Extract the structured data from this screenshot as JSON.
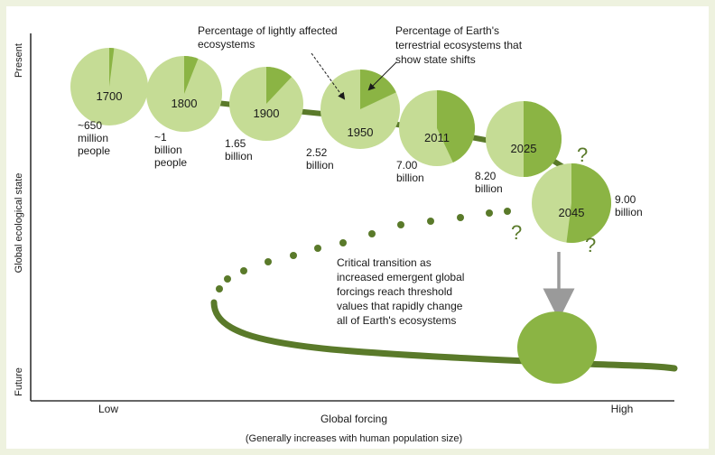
{
  "axes": {
    "y_label": "Global ecological state",
    "y_top": "Present",
    "y_bottom": "Future",
    "x_label": "Global forcing",
    "x_left": "Low",
    "x_right": "High",
    "x_note": "(Generally increases with human population size)"
  },
  "callouts": {
    "lightly_affected": [
      "Percentage of lightly affected",
      "ecosystems"
    ],
    "state_shifts": [
      "Percentage of Earth's",
      "terrestrial ecosystems that",
      "show state shifts"
    ],
    "critical_transition": [
      "Critical transition as",
      "increased emergent global",
      "forcings reach threshold",
      "values that rapidly change",
      "all of Earth's ecosystems"
    ]
  },
  "question_marks": [
    "?",
    "?",
    "?"
  ],
  "colors": {
    "light_green": "#c5dc95",
    "dark_green": "#8bb444",
    "trajectory": "#5a7a2a",
    "arrow_gray": "#9a9a9a"
  },
  "chart_data": {
    "type": "pie",
    "pies": [
      {
        "year": "1700",
        "population_lines": [
          "~650",
          "million",
          "people"
        ],
        "state_shift_fraction": 0.02
      },
      {
        "year": "1800",
        "population_lines": [
          "~1",
          "billion",
          "people"
        ],
        "state_shift_fraction": 0.06
      },
      {
        "year": "1900",
        "population_lines": [
          "1.65",
          "billion"
        ],
        "state_shift_fraction": 0.12
      },
      {
        "year": "1950",
        "population_lines": [
          "2.52",
          "billion"
        ],
        "state_shift_fraction": 0.18
      },
      {
        "year": "2011",
        "population_lines": [
          "7.00",
          "billion"
        ],
        "state_shift_fraction": 0.43
      },
      {
        "year": "2025",
        "population_lines": [
          "8.20",
          "billion"
        ],
        "state_shift_fraction": 0.5
      },
      {
        "year": "2045",
        "population_lines": [
          "9.00",
          "billion"
        ],
        "state_shift_fraction": 0.52
      }
    ]
  }
}
